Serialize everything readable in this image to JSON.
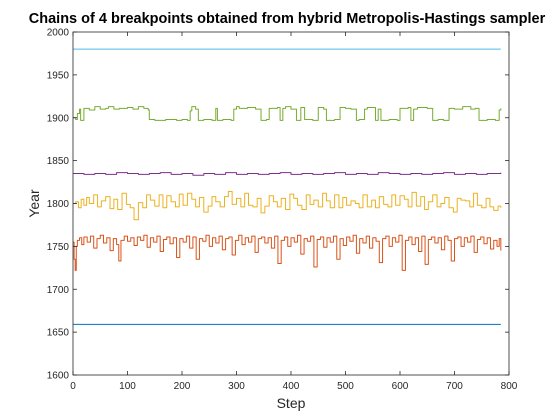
{
  "chart_data": {
    "type": "line",
    "title": "Chains of 4 breakpoints obtained from hybrid Metropolis-Hastings sampler",
    "xlabel": "Step",
    "ylabel": "Year",
    "xlim": [
      0,
      800
    ],
    "ylim": [
      1600,
      2000
    ],
    "xticks": [
      "0",
      "100",
      "200",
      "300",
      "400",
      "500",
      "600",
      "700",
      "800"
    ],
    "yticks": [
      "1600",
      "1650",
      "1700",
      "1750",
      "1800",
      "1850",
      "1900",
      "1950",
      "2000"
    ],
    "grid": false,
    "legend": "none",
    "box": true,
    "series": [
      {
        "color": "#4DBEEE",
        "x": [
          0,
          785
        ],
        "y": [
          1980,
          1980
        ]
      },
      {
        "color": "#77AC30",
        "x": [
          0,
          5,
          8,
          12,
          14,
          20,
          30,
          40,
          50,
          60,
          65,
          75,
          85,
          100,
          110,
          120,
          130,
          138,
          140,
          150,
          170,
          190,
          200,
          210,
          215,
          218,
          225,
          230,
          240,
          255,
          262,
          265,
          275,
          290,
          295,
          300,
          305,
          320,
          335,
          345,
          355,
          360,
          375,
          380,
          385,
          390,
          400,
          410,
          418,
          425,
          440,
          450,
          460,
          465,
          480,
          490,
          500,
          510,
          520,
          525,
          535,
          540,
          555,
          560,
          565,
          580,
          595,
          600,
          615,
          620,
          625,
          632,
          650,
          660,
          670,
          680,
          690,
          700,
          715,
          730,
          738,
          745,
          760,
          775,
          782,
          785
        ],
        "y": [
          1900,
          1898,
          1905,
          1910,
          1897,
          1911,
          1909,
          1913,
          1910,
          1911,
          1913,
          1910,
          1911,
          1912,
          1910,
          1913,
          1911,
          1909,
          1898,
          1897,
          1898,
          1897,
          1898,
          1897,
          1908,
          1913,
          1910,
          1897,
          1898,
          1897,
          1911,
          1897,
          1898,
          1897,
          1910,
          1913,
          1911,
          1912,
          1910,
          1897,
          1898,
          1911,
          1912,
          1897,
          1911,
          1913,
          1910,
          1897,
          1912,
          1898,
          1897,
          1912,
          1910,
          1897,
          1898,
          1912,
          1911,
          1910,
          1897,
          1898,
          1910,
          1912,
          1897,
          1910,
          1897,
          1898,
          1897,
          1911,
          1912,
          1897,
          1910,
          1912,
          1911,
          1897,
          1898,
          1897,
          1911,
          1910,
          1913,
          1910,
          1911,
          1897,
          1898,
          1897,
          1909,
          1911
        ]
      },
      {
        "color": "#7E2F8E",
        "x": [
          0,
          20,
          40,
          60,
          80,
          100,
          120,
          140,
          160,
          180,
          200,
          220,
          240,
          260,
          280,
          300,
          320,
          340,
          360,
          380,
          400,
          420,
          440,
          460,
          480,
          500,
          520,
          540,
          560,
          580,
          600,
          620,
          640,
          660,
          680,
          700,
          720,
          740,
          760,
          785
        ],
        "y": [
          1835,
          1834,
          1835,
          1834,
          1836,
          1835,
          1834,
          1835,
          1836,
          1834,
          1835,
          1833,
          1835,
          1834,
          1836,
          1834,
          1835,
          1834,
          1835,
          1836,
          1834,
          1835,
          1834,
          1835,
          1836,
          1834,
          1835,
          1834,
          1836,
          1835,
          1834,
          1835,
          1834,
          1835,
          1836,
          1834,
          1835,
          1834,
          1835,
          1836
        ]
      },
      {
        "color": "#EDB120",
        "x": [
          0,
          5,
          10,
          15,
          20,
          25,
          30,
          38,
          45,
          52,
          60,
          68,
          75,
          82,
          90,
          98,
          105,
          112,
          120,
          128,
          135,
          142,
          150,
          158,
          165,
          172,
          180,
          188,
          195,
          202,
          210,
          218,
          225,
          232,
          240,
          248,
          255,
          262,
          270,
          278,
          285,
          292,
          300,
          308,
          315,
          322,
          330,
          338,
          345,
          352,
          360,
          368,
          375,
          382,
          390,
          398,
          405,
          412,
          420,
          428,
          435,
          442,
          450,
          458,
          465,
          472,
          480,
          488,
          495,
          502,
          510,
          518,
          525,
          532,
          540,
          548,
          555,
          562,
          570,
          578,
          585,
          592,
          600,
          608,
          615,
          622,
          630,
          638,
          645,
          652,
          660,
          668,
          675,
          682,
          690,
          698,
          705,
          712,
          720,
          728,
          735,
          742,
          750,
          758,
          765,
          772,
          780,
          785
        ],
        "y": [
          1800,
          1802,
          1795,
          1805,
          1798,
          1807,
          1800,
          1810,
          1796,
          1803,
          1808,
          1794,
          1805,
          1793,
          1812,
          1799,
          1795,
          1781,
          1801,
          1795,
          1810,
          1804,
          1797,
          1810,
          1795,
          1809,
          1802,
          1796,
          1811,
          1798,
          1812,
          1805,
          1796,
          1807,
          1790,
          1797,
          1808,
          1802,
          1796,
          1808,
          1814,
          1799,
          1806,
          1796,
          1812,
          1798,
          1796,
          1806,
          1789,
          1797,
          1809,
          1802,
          1796,
          1806,
          1793,
          1811,
          1806,
          1798,
          1793,
          1810,
          1799,
          1804,
          1796,
          1812,
          1803,
          1795,
          1810,
          1795,
          1807,
          1798,
          1803,
          1800,
          1795,
          1810,
          1796,
          1804,
          1795,
          1808,
          1799,
          1796,
          1810,
          1798,
          1809,
          1805,
          1796,
          1813,
          1797,
          1808,
          1793,
          1802,
          1810,
          1796,
          1800,
          1807,
          1795,
          1790,
          1806,
          1804,
          1803,
          1796,
          1812,
          1798,
          1795,
          1806,
          1796,
          1792,
          1797,
          1795
        ]
      },
      {
        "color": "#D95319",
        "x": [
          0,
          2,
          4,
          6,
          8,
          12,
          16,
          20,
          26,
          32,
          38,
          44,
          50,
          56,
          62,
          68,
          74,
          80,
          84,
          88,
          94,
          100,
          106,
          112,
          118,
          124,
          130,
          136,
          142,
          148,
          154,
          160,
          166,
          172,
          178,
          184,
          190,
          196,
          202,
          208,
          214,
          220,
          226,
          232,
          238,
          244,
          250,
          256,
          262,
          268,
          274,
          280,
          286,
          292,
          298,
          304,
          310,
          316,
          322,
          328,
          334,
          340,
          346,
          352,
          358,
          364,
          370,
          376,
          382,
          388,
          394,
          400,
          406,
          412,
          418,
          424,
          430,
          436,
          442,
          448,
          454,
          460,
          466,
          472,
          478,
          484,
          490,
          496,
          502,
          508,
          514,
          520,
          526,
          532,
          538,
          544,
          550,
          556,
          562,
          568,
          574,
          580,
          586,
          592,
          598,
          604,
          610,
          616,
          622,
          628,
          634,
          640,
          646,
          652,
          658,
          664,
          670,
          676,
          682,
          688,
          694,
          700,
          706,
          712,
          718,
          724,
          730,
          736,
          742,
          748,
          754,
          760,
          766,
          772,
          778,
          782,
          785
        ],
        "y": [
          1755,
          1735,
          1722,
          1750,
          1757,
          1760,
          1752,
          1761,
          1755,
          1762,
          1748,
          1759,
          1763,
          1754,
          1760,
          1745,
          1759,
          1752,
          1733,
          1757,
          1762,
          1756,
          1760,
          1751,
          1761,
          1757,
          1763,
          1749,
          1760,
          1755,
          1762,
          1744,
          1758,
          1761,
          1753,
          1760,
          1737,
          1759,
          1755,
          1762,
          1748,
          1761,
          1735,
          1759,
          1756,
          1763,
          1750,
          1760,
          1754,
          1762,
          1746,
          1759,
          1761,
          1740,
          1757,
          1763,
          1752,
          1760,
          1755,
          1762,
          1743,
          1759,
          1761,
          1754,
          1760,
          1748,
          1762,
          1730,
          1757,
          1761,
          1750,
          1760,
          1755,
          1763,
          1741,
          1759,
          1756,
          1762,
          1726,
          1758,
          1761,
          1749,
          1760,
          1755,
          1762,
          1735,
          1759,
          1751,
          1761,
          1756,
          1763,
          1742,
          1759,
          1754,
          1762,
          1748,
          1760,
          1756,
          1731,
          1759,
          1762,
          1750,
          1760,
          1755,
          1763,
          1722,
          1757,
          1761,
          1752,
          1760,
          1744,
          1762,
          1729,
          1758,
          1761,
          1754,
          1760,
          1746,
          1762,
          1757,
          1733,
          1759,
          1761,
          1750,
          1760,
          1755,
          1762,
          1743,
          1758,
          1761,
          1753,
          1760,
          1747,
          1757,
          1750,
          1759,
          1745
        ]
      },
      {
        "color": "#0072BD",
        "x": [
          0,
          785
        ],
        "y": [
          1659,
          1659
        ]
      }
    ]
  }
}
